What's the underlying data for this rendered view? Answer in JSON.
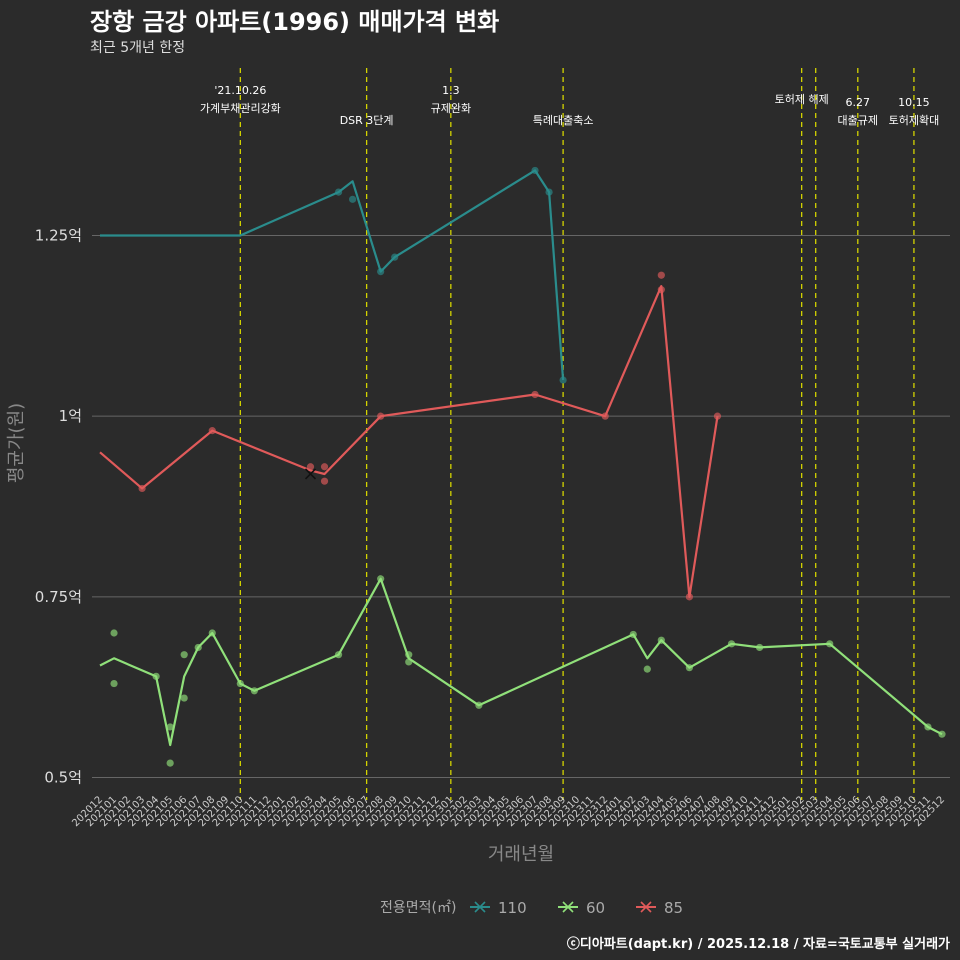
{
  "chart_data": {
    "type": "line",
    "title": "장항 금강 아파트(1996) 매매가격 변화",
    "subtitle": "최근 5개년 한정",
    "xlabel": "거래년월",
    "ylabel": "평균가(원)",
    "ylim": [
      0.48,
      1.49
    ],
    "yticks": [
      {
        "value": 0.5,
        "label": "0.5억"
      },
      {
        "value": 0.75,
        "label": "0.75억"
      },
      {
        "value": 1.0,
        "label": "1억"
      },
      {
        "value": 1.25,
        "label": "1.25억"
      }
    ],
    "x_months": [
      "202012",
      "202101",
      "202102",
      "202103",
      "202104",
      "202105",
      "202106",
      "202107",
      "202108",
      "202109",
      "202110",
      "202111",
      "202112",
      "202201",
      "202202",
      "202203",
      "202204",
      "202205",
      "202206",
      "202207",
      "202208",
      "202209",
      "202210",
      "202211",
      "202212",
      "202301",
      "202302",
      "202303",
      "202304",
      "202305",
      "202306",
      "202307",
      "202308",
      "202309",
      "202310",
      "202311",
      "202312",
      "202401",
      "202402",
      "202403",
      "202404",
      "202405",
      "202406",
      "202407",
      "202408",
      "202409",
      "202410",
      "202411",
      "202412",
      "202501",
      "202502",
      "202503",
      "202504",
      "202505",
      "202506",
      "202507",
      "202508",
      "202509",
      "202510",
      "202511",
      "202512"
    ],
    "events": [
      {
        "month_index": 10,
        "lines": [
          "'21.10.26",
          "가계부채관리강화"
        ],
        "level": "high"
      },
      {
        "month_index": 19,
        "lines": [
          "DSR 3단계"
        ],
        "level": "low"
      },
      {
        "month_index": 25,
        "lines": [
          "1.3",
          "규제완화"
        ],
        "level": "high"
      },
      {
        "month_index": 33,
        "lines": [
          "특례대출축소"
        ],
        "level": "low"
      },
      {
        "month_index": 50,
        "lines": [
          "토허제 해제"
        ],
        "level": "mid"
      },
      {
        "month_index": 51,
        "lines": [],
        "level": "none"
      },
      {
        "month_index": 54,
        "lines": [
          "6.27",
          "대출규제"
        ],
        "level": "low"
      },
      {
        "month_index": 58,
        "lines": [
          "10.15",
          "토허제확대"
        ],
        "level": "low"
      }
    ],
    "series": [
      {
        "name": "110",
        "color": "#2a8c8c",
        "line": [
          [
            0,
            1.25
          ],
          [
            10,
            1.25
          ],
          [
            17,
            1.31
          ],
          [
            18,
            1.325
          ],
          [
            20,
            1.2
          ],
          [
            21,
            1.22
          ],
          [
            31,
            1.34
          ],
          [
            32,
            1.31
          ],
          [
            33,
            1.05
          ]
        ],
        "points": [
          [
            17,
            1.31
          ],
          [
            18,
            1.3
          ],
          [
            20,
            1.2
          ],
          [
            21,
            1.22
          ],
          [
            31,
            1.34
          ],
          [
            32,
            1.31
          ],
          [
            33,
            1.05
          ]
        ]
      },
      {
        "name": "60",
        "color": "#90e07a",
        "line": [
          [
            0,
            0.655
          ],
          [
            1,
            0.665
          ],
          [
            4,
            0.64
          ],
          [
            5,
            0.545
          ],
          [
            6,
            0.64
          ],
          [
            7,
            0.68
          ],
          [
            8,
            0.7
          ],
          [
            10,
            0.63
          ],
          [
            11,
            0.62
          ],
          [
            17,
            0.67
          ],
          [
            20,
            0.775
          ],
          [
            22,
            0.665
          ],
          [
            27,
            0.6
          ],
          [
            38,
            0.698
          ],
          [
            39,
            0.665
          ],
          [
            40,
            0.69
          ],
          [
            42,
            0.652
          ],
          [
            45,
            0.685
          ],
          [
            47,
            0.68
          ],
          [
            52,
            0.685
          ],
          [
            59,
            0.57
          ],
          [
            60,
            0.56
          ]
        ],
        "points": [
          [
            1,
            0.7
          ],
          [
            1,
            0.63
          ],
          [
            4,
            0.64
          ],
          [
            5,
            0.57
          ],
          [
            5,
            0.52
          ],
          [
            6,
            0.67
          ],
          [
            6,
            0.61
          ],
          [
            7,
            0.68
          ],
          [
            8,
            0.7
          ],
          [
            10,
            0.63
          ],
          [
            11,
            0.62
          ],
          [
            17,
            0.67
          ],
          [
            20,
            0.775
          ],
          [
            22,
            0.67
          ],
          [
            22,
            0.66
          ],
          [
            27,
            0.6
          ],
          [
            38,
            0.698
          ],
          [
            39,
            0.65
          ],
          [
            40,
            0.69
          ],
          [
            42,
            0.652
          ],
          [
            45,
            0.685
          ],
          [
            47,
            0.68
          ],
          [
            52,
            0.685
          ],
          [
            59,
            0.57
          ],
          [
            60,
            0.56
          ]
        ]
      },
      {
        "name": "85",
        "color": "#e05a5a",
        "line": [
          [
            0,
            0.95
          ],
          [
            3,
            0.9
          ],
          [
            8,
            0.98
          ],
          [
            15,
            0.925
          ],
          [
            16,
            0.92
          ],
          [
            20,
            1.0
          ],
          [
            31,
            1.03
          ],
          [
            36,
            1.0
          ],
          [
            40,
            1.18
          ],
          [
            42,
            0.75
          ],
          [
            44,
            1.0
          ]
        ],
        "points": [
          [
            3,
            0.9
          ],
          [
            8,
            0.98
          ],
          [
            15,
            0.93
          ],
          [
            16,
            0.93
          ],
          [
            16,
            0.91
          ],
          [
            20,
            1.0
          ],
          [
            31,
            1.03
          ],
          [
            36,
            1.0
          ],
          [
            40,
            1.195
          ],
          [
            40,
            1.175
          ],
          [
            42,
            0.75
          ],
          [
            44,
            1.0
          ]
        ]
      }
    ],
    "cancelled_marks": [
      [
        15,
        0.92
      ]
    ],
    "legend": {
      "title": "전용면적(㎡)",
      "entries": [
        "110",
        "60",
        "85"
      ],
      "position": "bottom"
    },
    "caption": "ⓒ디아파트(dapt.kr) / 2025.12.18 / 자료=국토교통부 실거래가"
  }
}
